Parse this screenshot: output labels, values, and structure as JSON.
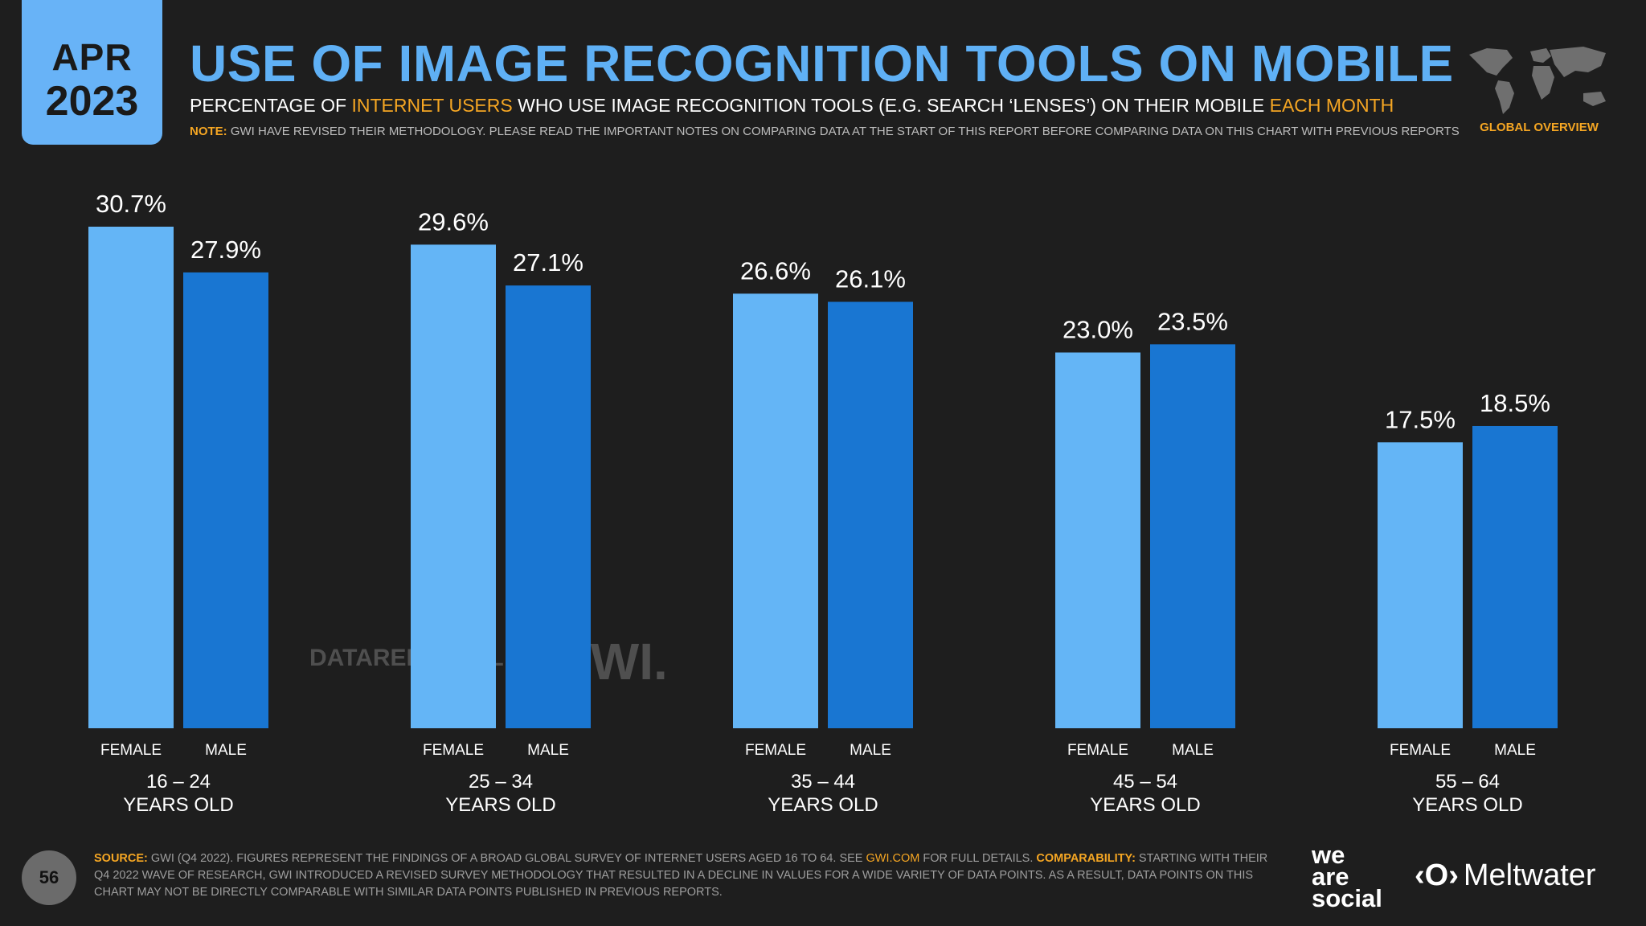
{
  "header": {
    "month": "APR",
    "year": "2023",
    "title": "USE OF IMAGE RECOGNITION TOOLS ON MOBILE",
    "subtitle_parts": [
      "PERCENTAGE OF ",
      "INTERNET USERS",
      " WHO USE IMAGE RECOGNITION TOOLS (E.G. SEARCH ‘LENSES’) ON THEIR MOBILE ",
      "EACH MONTH"
    ],
    "note_label": "NOTE:",
    "note_text": " GWI HAVE REVISED THEIR METHODOLOGY. PLEASE READ THE IMPORTANT NOTES ON COMPARING DATA AT THE START OF THIS REPORT BEFORE COMPARING DATA ON THIS CHART WITH PREVIOUS REPORTS",
    "global_overview": "GLOBAL OVERVIEW"
  },
  "colors": {
    "female": "#64b5f6",
    "male": "#1976d2",
    "accent": "#f5a623",
    "title": "#5fb0f5"
  },
  "chart_data": {
    "type": "bar",
    "title": "USE OF IMAGE RECOGNITION TOOLS ON MOBILE",
    "categories": [
      "16 – 24",
      "25 – 34",
      "35 – 44",
      "45 – 54",
      "55 – 64"
    ],
    "category_suffix": "YEARS OLD",
    "series": [
      {
        "name": "FEMALE",
        "values": [
          30.7,
          29.6,
          26.6,
          23.0,
          17.5
        ]
      },
      {
        "name": "MALE",
        "values": [
          27.9,
          27.1,
          26.1,
          23.5,
          18.5
        ]
      }
    ],
    "value_suffix": "%",
    "ylim": [
      0,
      30.7
    ]
  },
  "watermark": {
    "datareportal": "DATAREPORTAL",
    "gwi": "GWI."
  },
  "footer": {
    "page_number": "56",
    "source_label": "SOURCE:",
    "source_text": " GWI (Q4 2022). FIGURES REPRESENT THE FINDINGS OF A BROAD GLOBAL SURVEY OF INTERNET USERS AGED 16 TO 64. SEE ",
    "source_link": "GWI.COM",
    "source_text2": " FOR FULL DETAILS. ",
    "comparability_label": "COMPARABILITY:",
    "comparability_text": " STARTING WITH THEIR Q4 2022 WAVE OF RESEARCH, GWI INTRODUCED A REVISED SURVEY METHODOLOGY THAT RESULTED IN A DECLINE IN VALUES FOR A WIDE VARIETY OF DATA POINTS. AS A RESULT, DATA POINTS ON THIS CHART MAY NOT BE DIRECTLY COMPARABLE WITH SIMILAR DATA POINTS PUBLISHED IN PREVIOUS REPORTS.",
    "brand_was_lines": [
      "we",
      "are",
      "social"
    ],
    "brand_meltwater_icon": "‹O›",
    "brand_meltwater": "Meltwater"
  }
}
